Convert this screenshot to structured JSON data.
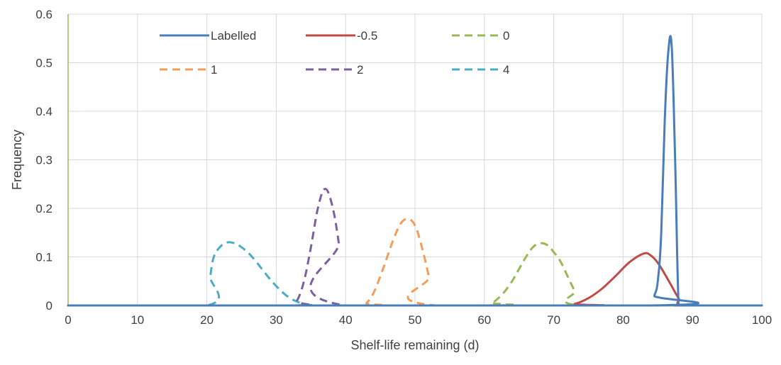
{
  "chart_data": {
    "type": "line",
    "title": "",
    "xlabel": "Shelf-life remaining (d)",
    "ylabel": "Frequency",
    "xlim": [
      0,
      100
    ],
    "ylim": [
      0,
      0.6
    ],
    "xticks": [
      0,
      10,
      20,
      30,
      40,
      50,
      60,
      70,
      80,
      90,
      100
    ],
    "yticks": [
      0,
      0.1,
      0.2,
      0.3,
      0.4,
      0.5,
      0.6
    ],
    "grid": true,
    "legend_position": "top",
    "series": [
      {
        "name": "Labelled",
        "color": "#4a7ebb",
        "dash": "solid",
        "x": [
          0,
          84,
          84.5,
          85,
          85.5,
          86,
          86.5,
          87,
          87.5,
          88,
          88.5,
          100
        ],
        "y": [
          0,
          0,
          0.02,
          0.05,
          0.15,
          0.38,
          0.52,
          0.535,
          0.3,
          0,
          0,
          0
        ]
      },
      {
        "name": "-0.5",
        "color": "#be4b48",
        "dash": "solid",
        "x": [
          0,
          71,
          73,
          75,
          77,
          79,
          81,
          83,
          84,
          85,
          86,
          87,
          88,
          89,
          100
        ],
        "y": [
          0,
          0,
          0.003,
          0.015,
          0.035,
          0.062,
          0.09,
          0.107,
          0.103,
          0.088,
          0.065,
          0.04,
          0.015,
          0,
          0
        ]
      },
      {
        "name": "0",
        "color": "#98b954",
        "dash": "dashed",
        "x": [
          0,
          59,
          61,
          62,
          63,
          64,
          65,
          66,
          67,
          68,
          69,
          70,
          71,
          72,
          73,
          74,
          100
        ],
        "y": [
          0,
          0,
          0.005,
          0.015,
          0.03,
          0.05,
          0.075,
          0.1,
          0.12,
          0.128,
          0.125,
          0.11,
          0.09,
          0.06,
          0.03,
          0,
          0
        ]
      },
      {
        "name": "1",
        "color": "#f59d56",
        "dash": "dashed",
        "x": [
          0,
          42,
          43,
          44,
          45,
          46,
          47,
          48,
          49,
          50,
          51,
          52,
          53,
          100
        ],
        "y": [
          0,
          0,
          0.005,
          0.025,
          0.06,
          0.1,
          0.14,
          0.17,
          0.178,
          0.165,
          0.12,
          0.06,
          0,
          0
        ]
      },
      {
        "name": "2",
        "color": "#7d60a0",
        "dash": "dashed",
        "x": [
          0,
          32,
          33,
          34,
          35,
          36,
          37,
          38,
          39,
          40,
          100
        ],
        "y": [
          0,
          0,
          0.01,
          0.05,
          0.12,
          0.2,
          0.24,
          0.21,
          0.13,
          0,
          0
        ]
      },
      {
        "name": "4",
        "color": "#4bacc6",
        "dash": "dashed",
        "x": [
          0,
          20,
          20.5,
          21,
          22,
          23,
          24,
          25,
          26,
          27,
          28,
          29,
          30,
          31,
          32,
          33,
          34,
          35,
          36,
          37,
          100
        ],
        "y": [
          0,
          0,
          0.06,
          0.1,
          0.122,
          0.13,
          0.128,
          0.12,
          0.108,
          0.092,
          0.074,
          0.056,
          0.04,
          0.026,
          0.015,
          0.008,
          0.003,
          0.001,
          0,
          0,
          0
        ]
      }
    ]
  }
}
